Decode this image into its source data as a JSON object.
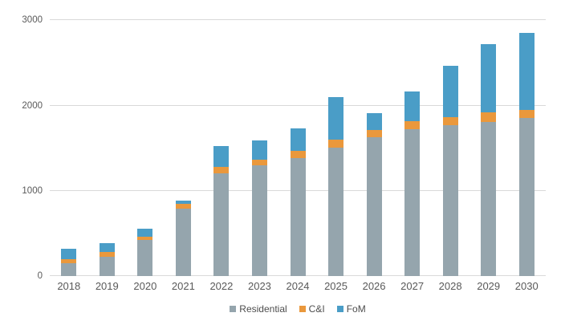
{
  "chart_data": {
    "type": "bar",
    "stacked": true,
    "title": "",
    "xlabel": "",
    "ylabel": "",
    "categories": [
      "2018",
      "2019",
      "2020",
      "2021",
      "2022",
      "2023",
      "2024",
      "2025",
      "2026",
      "2027",
      "2028",
      "2029",
      "2030"
    ],
    "series": [
      {
        "name": "Residential",
        "color": "#95a5ad",
        "values": [
          150,
          230,
          425,
          790,
          1205,
          1290,
          1375,
          1500,
          1625,
          1715,
          1765,
          1805,
          1845
        ]
      },
      {
        "name": "C&I",
        "color": "#ea983c",
        "values": [
          45,
          55,
          35,
          55,
          70,
          70,
          85,
          90,
          85,
          95,
          95,
          105,
          100
        ]
      },
      {
        "name": "FoM",
        "color": "#4a9dc7",
        "values": [
          125,
          100,
          90,
          40,
          240,
          220,
          265,
          500,
          195,
          345,
          595,
          800,
          900
        ]
      }
    ],
    "totals": [
      320,
      385,
      550,
      885,
      1515,
      1580,
      1725,
      2090,
      1905,
      2155,
      2455,
      2710,
      2845
    ],
    "ylim": [
      0,
      3000
    ],
    "yticks": [
      0,
      1000,
      2000,
      3000
    ],
    "grid": "horizontal",
    "legend_position": "bottom-center"
  },
  "colors": {
    "background": "#ffffff",
    "gridline": "#d9d9d9",
    "axis_text": "#595959",
    "legend_text": "#4d4d4d"
  }
}
